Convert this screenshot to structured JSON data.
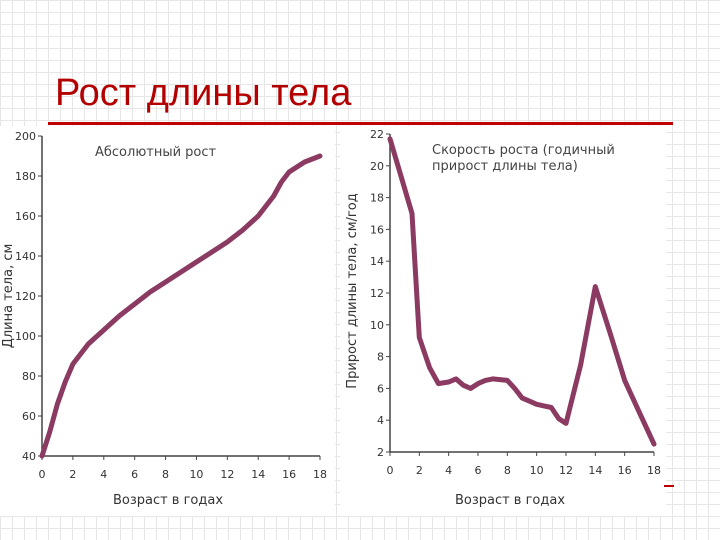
{
  "slide": {
    "title": "Рост длины тела"
  },
  "chart_data": [
    {
      "type": "line",
      "title": "Абсолютный рост",
      "xlabel": "Возраст в годах",
      "ylabel": "Длина тела, см",
      "xlim": [
        0,
        18
      ],
      "ylim": [
        40,
        200
      ],
      "xticks": [
        0,
        2,
        4,
        6,
        8,
        10,
        12,
        14,
        16,
        18
      ],
      "yticks": [
        40,
        60,
        80,
        100,
        120,
        140,
        160,
        180,
        200
      ],
      "grid": false,
      "series": [
        {
          "color": "#8b3a62",
          "x": [
            0,
            0.5,
            1,
            1.5,
            2,
            3,
            4,
            5,
            6,
            7,
            8,
            9,
            10,
            11,
            12,
            13,
            14,
            15,
            15.5,
            16,
            17,
            18
          ],
          "y": [
            40,
            52,
            66,
            77,
            86,
            96,
            103,
            110,
            116,
            122,
            127,
            132,
            137,
            142,
            147,
            153,
            160,
            170,
            177,
            182,
            187,
            190
          ]
        }
      ]
    },
    {
      "type": "line",
      "title": "Скорость роста (годичный прирост длины тела)",
      "title_lines": [
        "Скорость роста (годичный",
        "прирост длины тела)"
      ],
      "xlabel": "Возраст в годах",
      "ylabel": "Прирост длины тела, см/год",
      "xlim": [
        0,
        18
      ],
      "ylim": [
        2,
        22
      ],
      "xticks": [
        0,
        2,
        4,
        6,
        8,
        10,
        12,
        14,
        16,
        18
      ],
      "yticks": [
        2,
        4,
        6,
        8,
        10,
        12,
        14,
        16,
        18,
        20,
        22
      ],
      "grid": false,
      "series": [
        {
          "color": "#8b3a62",
          "x": [
            0,
            1.5,
            2,
            2.7,
            3.3,
            4,
            4.5,
            5,
            5.5,
            6,
            6.5,
            7,
            8,
            8.5,
            9,
            9.5,
            10,
            10.5,
            11,
            11.5,
            12,
            13,
            14,
            15,
            16,
            17,
            18
          ],
          "y": [
            21.7,
            17,
            9.2,
            7.3,
            6.3,
            6.4,
            6.6,
            6.2,
            6.0,
            6.3,
            6.5,
            6.6,
            6.5,
            6.0,
            5.4,
            5.2,
            5.0,
            4.9,
            4.8,
            4.1,
            3.8,
            7.5,
            12.4,
            9.5,
            6.5,
            4.5,
            2.5
          ]
        }
      ]
    }
  ]
}
